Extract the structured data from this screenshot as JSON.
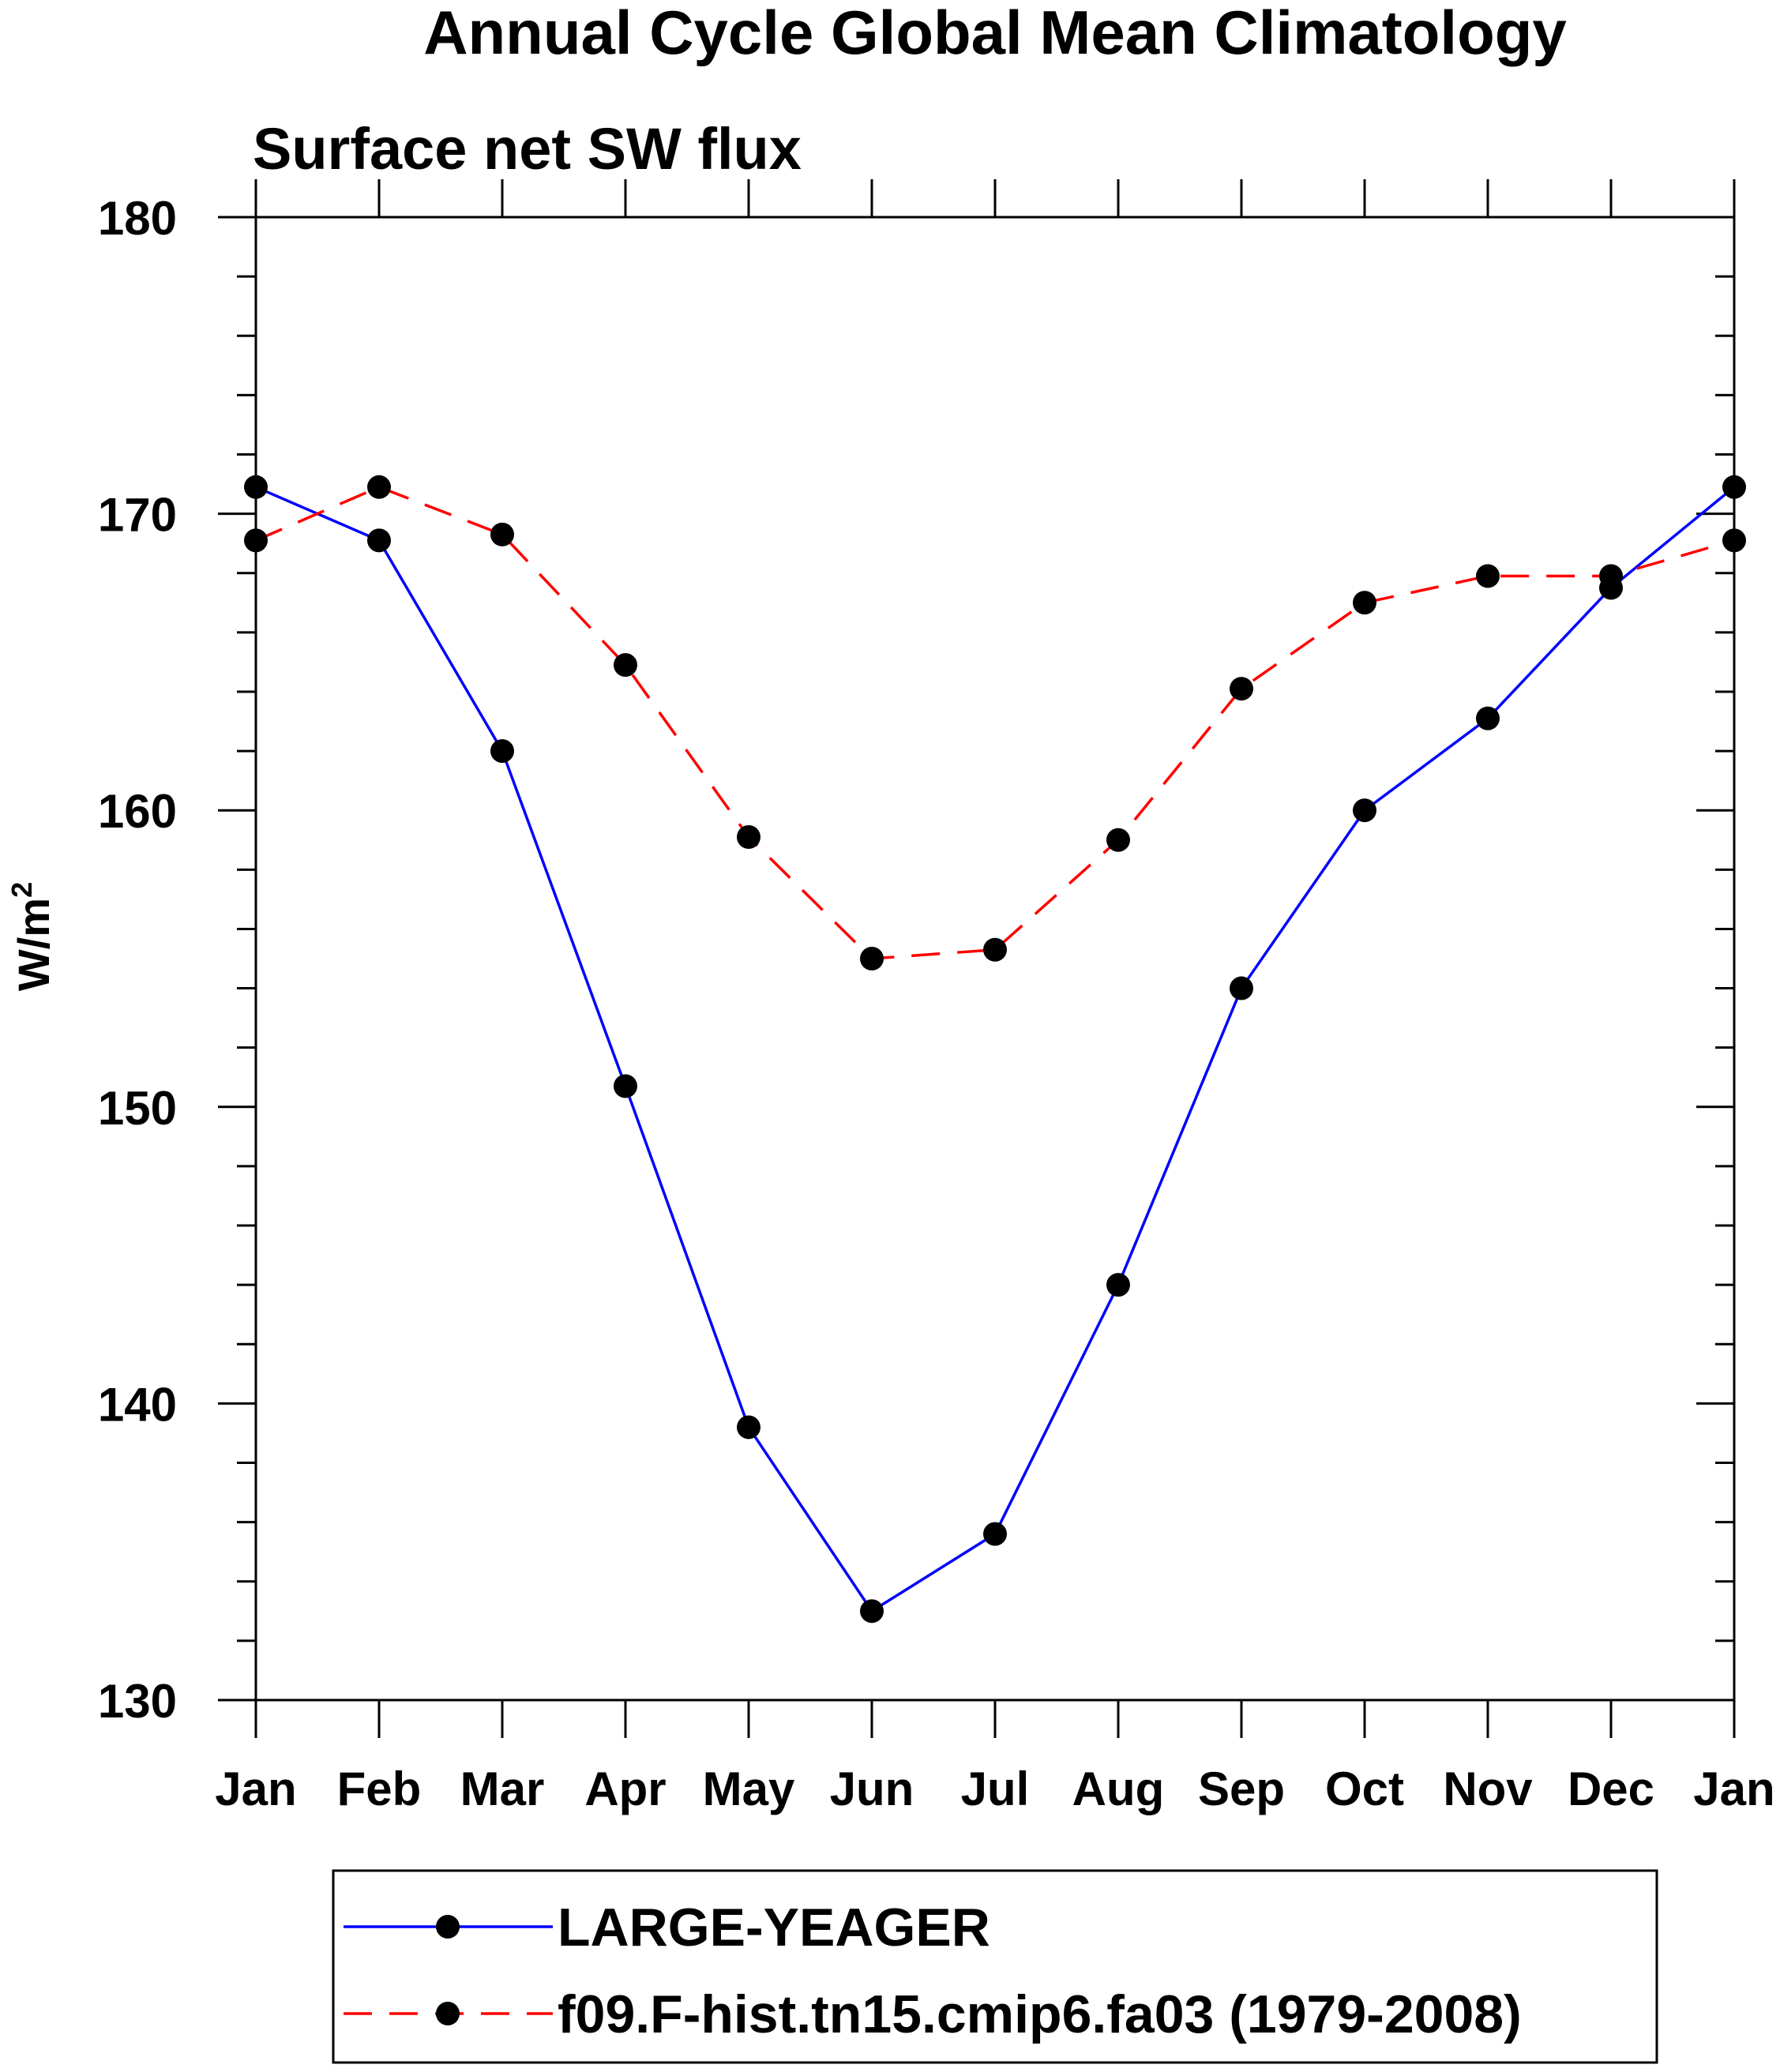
{
  "chart_data": {
    "type": "line",
    "title": "Annual Cycle Global Mean Climatology",
    "subtitle": "Surface net SW flux",
    "xlabel": "",
    "ylabel": "W/m",
    "ylabel_superscript": "2",
    "categories": [
      "Jan",
      "Feb",
      "Mar",
      "Apr",
      "May",
      "Jun",
      "Jul",
      "Aug",
      "Sep",
      "Oct",
      "Nov",
      "Dec",
      "Jan"
    ],
    "ylim": [
      130,
      180
    ],
    "yticks": [
      "130",
      "140",
      "150",
      "160",
      "170",
      "180"
    ],
    "grid": false,
    "legend_position": "bottom",
    "series": [
      {
        "name": "LARGE-YEAGER",
        "color": "#0000ff",
        "style": "solid",
        "values": [
          170.9,
          169.1,
          162.0,
          150.7,
          139.2,
          133.0,
          135.6,
          144.0,
          154.0,
          160.0,
          163.1,
          167.5,
          170.9
        ]
      },
      {
        "name": "f09.F-hist.tn15.cmip6.fa03 (1979-2008)",
        "color": "#ff0000",
        "style": "dashed",
        "values": [
          169.1,
          170.9,
          169.3,
          164.9,
          159.1,
          155.0,
          155.3,
          159.0,
          164.1,
          167.0,
          167.9,
          167.9,
          169.1
        ]
      }
    ]
  }
}
